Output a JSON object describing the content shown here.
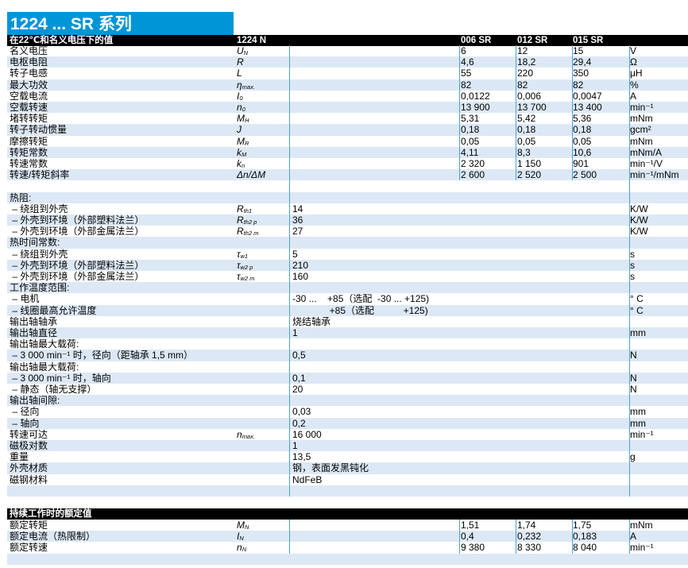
{
  "title": "1224 ... SR 系列",
  "header": {
    "label": "在22℃和名义电压下的值",
    "model": "1224 N",
    "variants": [
      "006 SR",
      "012 SR",
      "015 SR"
    ]
  },
  "spec_rows": [
    {
      "label": "名义电压",
      "sym": "U",
      "sub": "N",
      "v": [
        "6",
        "12",
        "15"
      ],
      "unit": "V"
    },
    {
      "label": "电枢电阻",
      "sym": "R",
      "sub": "",
      "v": [
        "4,6",
        "18,2",
        "29,4"
      ],
      "unit": "Ω"
    },
    {
      "label": "转子电感",
      "sym": "L",
      "sub": "",
      "v": [
        "55",
        "220",
        "350"
      ],
      "unit": "μH"
    },
    {
      "label": "最大功效",
      "sym": "η",
      "sub": "max.",
      "v": [
        "82",
        "82",
        "82"
      ],
      "unit": "%"
    },
    {
      "label": "空载电流",
      "sym": "I",
      "sub": "0",
      "v": [
        "0,0122",
        "0,006",
        "0,0047"
      ],
      "unit": "A"
    },
    {
      "label": "空载转速",
      "sym": "n",
      "sub": "0",
      "v": [
        "13 900",
        "13 700",
        "13 400"
      ],
      "unit": "min⁻¹"
    },
    {
      "label": "堵转转矩",
      "sym": "M",
      "sub": "H",
      "v": [
        "5,31",
        "5,42",
        "5,36"
      ],
      "unit": "mNm"
    },
    {
      "label": "转子转动惯量",
      "sym": "J",
      "sub": "",
      "v": [
        "0,18",
        "0,18",
        "0,18"
      ],
      "unit": "gcm²"
    },
    {
      "label": "摩擦转矩",
      "sym": "M",
      "sub": "R",
      "v": [
        "0,05",
        "0,05",
        "0,05"
      ],
      "unit": "mNm"
    },
    {
      "label": "转矩常数",
      "sym": "k",
      "sub": "M",
      "v": [
        "4,11",
        "8,3",
        "10,6"
      ],
      "unit": "mNm/A"
    },
    {
      "label": "转速常数",
      "sym": "k",
      "sub": "n",
      "v": [
        "2 320",
        "1 150",
        "901"
      ],
      "unit": "min⁻¹/V"
    },
    {
      "label": "转速/转矩斜率",
      "sym": "Δn/ΔM",
      "sub": "",
      "v": [
        "2 600",
        "2 520",
        "2 500"
      ],
      "unit": "min⁻¹/mNm"
    }
  ],
  "general_rows": [
    {
      "label": "",
      "sym": "",
      "sub": "",
      "val": "",
      "unit": ""
    },
    {
      "label": "热阻:",
      "sym": "",
      "sub": "",
      "val": "",
      "unit": ""
    },
    {
      "label": " – 绕组到外壳",
      "sym": "R",
      "sub": "th1",
      "val": "14",
      "unit": "K/W"
    },
    {
      "label": " – 外壳到环境（外部塑料法兰）",
      "sym": "R",
      "sub": "th2 p",
      "val": "36",
      "unit": "K/W"
    },
    {
      "label": " – 外壳到环境（外部金属法兰）",
      "sym": "R",
      "sub": "th2 m",
      "val": "27",
      "unit": "K/W"
    },
    {
      "label": "热时间常数:",
      "sym": "",
      "sub": "",
      "val": "",
      "unit": ""
    },
    {
      "label": " – 绕组到外壳",
      "sym": "τ",
      "sub": "w1",
      "val": "5",
      "unit": "s"
    },
    {
      "label": " – 外壳到环境（外部塑料法兰）",
      "sym": "τ",
      "sub": "w2 p",
      "val": "210",
      "unit": "s"
    },
    {
      "label": " – 外壳到环境（外部金属法兰）",
      "sym": "τ",
      "sub": "w2 m",
      "val": "160",
      "unit": "s"
    },
    {
      "label": "工作温度范围:",
      "sym": "",
      "sub": "",
      "val": "",
      "unit": ""
    },
    {
      "label": " – 电机",
      "sym": "",
      "sub": "",
      "val": "-30 ...    +85（选配  -30 ... +125)",
      "unit": "° C"
    },
    {
      "label": " – 线圈最高允许温度",
      "sym": "",
      "sub": "",
      "val": "              +85（选配           +125)",
      "unit": "° C"
    },
    {
      "label": "输出轴轴承",
      "sym": "",
      "sub": "",
      "val": "烧结轴承",
      "unit": ""
    },
    {
      "label": "输出轴直径",
      "sym": "",
      "sub": "",
      "val": "1",
      "unit": "mm"
    },
    {
      "label": "输出轴最大载荷:",
      "sym": "",
      "sub": "",
      "val": "",
      "unit": ""
    },
    {
      "label": " – 3 000 min⁻¹ 时，径向（距轴承 1,5 mm）",
      "sym": "",
      "sub": "",
      "val": "0,5",
      "unit": "N"
    },
    {
      "label": "输出轴最大载荷:",
      "sym": "",
      "sub": "",
      "val": "",
      "unit": ""
    },
    {
      "label": " – 3 000 min⁻¹ 时，轴向",
      "sym": "",
      "sub": "",
      "val": "0,1",
      "unit": "N"
    },
    {
      "label": " – 静态（轴无支撑）",
      "sym": "",
      "sub": "",
      "val": "20",
      "unit": "N"
    },
    {
      "label": "输出轴间隙:",
      "sym": "",
      "sub": "",
      "val": "",
      "unit": ""
    },
    {
      "label": " – 径向",
      "sym": "",
      "sub": "",
      "val": "0,03",
      "unit": "mm"
    },
    {
      "label": " – 轴向",
      "sym": "",
      "sub": "",
      "val": "0,2",
      "unit": "mm"
    },
    {
      "label": "转速可达",
      "sym": "n",
      "sub": "max.",
      "val": "16 000",
      "unit": "min⁻¹"
    },
    {
      "label": "磁极对数",
      "sym": "",
      "sub": "",
      "val": "1",
      "unit": ""
    },
    {
      "label": "重量",
      "sym": "",
      "sub": "",
      "val": "13,5",
      "unit": "g"
    },
    {
      "label": "外壳材质",
      "sym": "",
      "sub": "",
      "val": "钢，表面发黑钝化",
      "unit": ""
    },
    {
      "label": "磁钢材料",
      "sym": "",
      "sub": "",
      "val": "NdFeB",
      "unit": ""
    },
    {
      "label": "",
      "sym": "",
      "sub": "",
      "val": "",
      "unit": ""
    }
  ],
  "rated": {
    "header": "持续工作时的额定值",
    "rows": [
      {
        "label": "额定转矩",
        "sym": "M",
        "sub": "N",
        "v": [
          "1,51",
          "1,74",
          "1,75"
        ],
        "unit": "mNm"
      },
      {
        "label": "额定电流（热限制）",
        "sym": "I",
        "sub": "N",
        "v": [
          "0,4",
          "0,232",
          "0,183"
        ],
        "unit": "A"
      },
      {
        "label": "额定转速",
        "sym": "n",
        "sub": "N",
        "v": [
          "9 380",
          "8 330",
          "8 040"
        ],
        "unit": "min⁻¹"
      },
      {
        "label": "",
        "sym": "",
        "sub": "",
        "v": [
          "",
          "",
          ""
        ],
        "unit": ""
      }
    ]
  },
  "colors": {
    "title_bg": "#0096d6",
    "row_alt": "#dce8f5",
    "divider": "#4aa0d8",
    "header_bg": "#000000"
  }
}
